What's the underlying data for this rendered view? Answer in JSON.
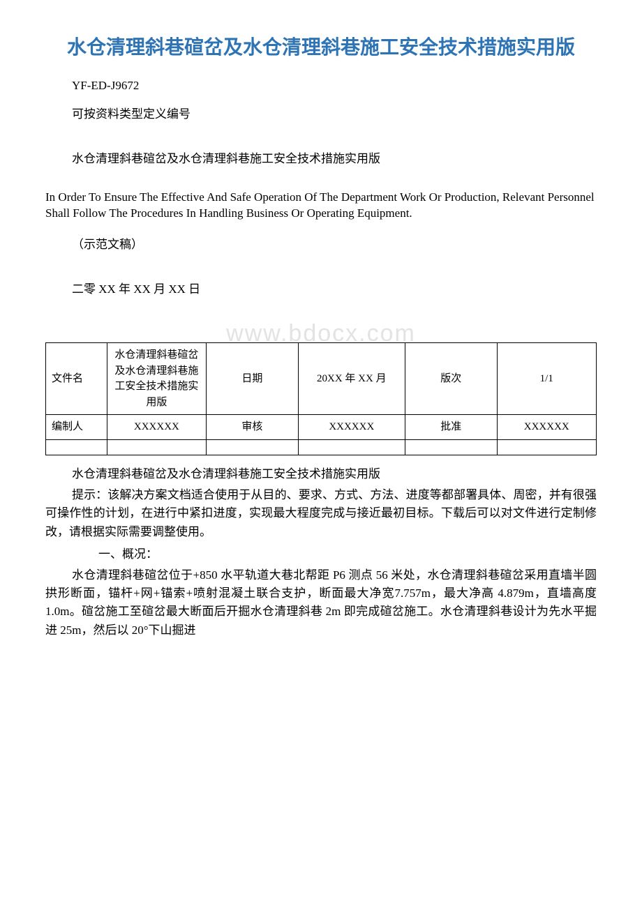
{
  "title": "水仓清理斜巷碹岔及水仓清理斜巷施工安全技术措施实用版",
  "doc_code": "YF-ED-J9672",
  "code_note": "可按资料类型定义编号",
  "subtitle": "水仓清理斜巷碹岔及水仓清理斜巷施工安全技术措施实用版",
  "english_note": "In Order To Ensure The Effective And Safe Operation Of The Department Work Or Production, Relevant Personnel Shall Follow The Procedures In Handling Business Or Operating Equipment.",
  "sample_label": "（示范文稿）",
  "date_line": "二零 XX 年 XX 月 XX 日",
  "watermark": "www.bdocx.com",
  "table": {
    "row1": {
      "c1": "文件名",
      "c2": "水仓清理斜巷碹岔及水仓清理斜巷施工安全技术措施实用版",
      "c3": "日期",
      "c4": "20XX 年 XX 月",
      "c5": "版次",
      "c6": "1/1"
    },
    "row2": {
      "c1": "编制人",
      "c2": "XXXXXX",
      "c3": "审核",
      "c4": "XXXXXX",
      "c5": "批准",
      "c6": "XXXXXX"
    }
  },
  "body": {
    "p1": "水仓清理斜巷碹岔及水仓清理斜巷施工安全技术措施实用版",
    "p2": "提示：该解决方案文档适合使用于从目的、要求、方式、方法、进度等都部署具体、周密，并有很强可操作性的计划，在进行中紧扣进度，实现最大程度完成与接近最初目标。下载后可以对文件进行定制修改，请根据实际需要调整使用。",
    "h1": "一、概况：",
    "p3": "水仓清理斜巷碹岔位于+850 水平轨道大巷北帮距 P6 测点 56 米处，水仓清理斜巷碹岔采用直墙半圆拱形断面，锚杆+网+锚索+喷射混凝土联合支护，断面最大净宽7.757m，最大净高 4.879m，直墙高度 1.0m。碹岔施工至碹岔最大断面后开掘水仓清理斜巷 2m 即完成碹岔施工。水仓清理斜巷设计为先水平掘进 25m，然后以 20°下山掘进"
  }
}
